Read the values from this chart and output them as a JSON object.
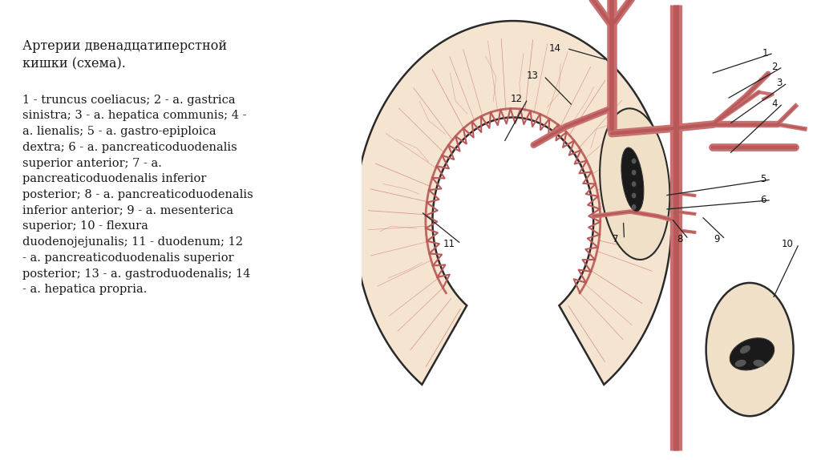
{
  "background_color": "#ffffff",
  "title_text": "Артерии двенадцатиперстной\nкишки (схема).",
  "description_text": "1 - truncus coeliacus; 2 - a. gastrica\nsinistra; 3 - a. hepatica communis; 4 -\na. lienalis; 5 - a. gastro-epiploica\ndextra; 6 - a. pancreaticoduodenalis\nsuperior anterior; 7 - a.\npancreaticoduodenalis inferior\nposterior; 8 - a. pancreaticoduodenalis\ninferior anterior; 9 - a. mesenterica\nsuperior; 10 - flexura\nduodenojejunalis; 11 - duodenum; 12\n- a. pancreaticoduodenalis superior\nposterior; 13 - a. gastroduodenalis; 14\n- a. hepatica propria.",
  "text_color": "#1a1a1a",
  "artery_color": "#c87070",
  "artery_mid": "#b85858",
  "duodenum_fill": "#f5e5d0",
  "duodenum_outline": "#2a2a2a",
  "dark_fill": "#1a1a1a",
  "vessel_fill": "#e8c8b8"
}
